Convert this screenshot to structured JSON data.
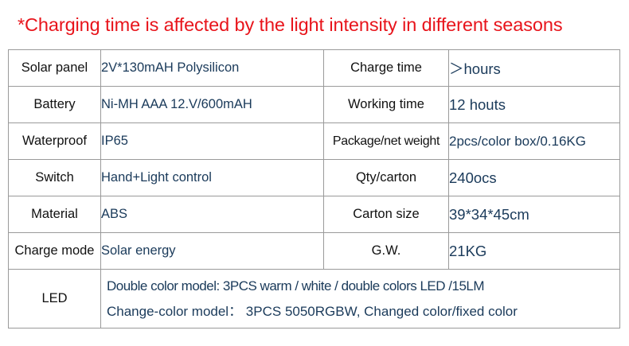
{
  "headline": "*Charging time is affected by the light intensity in different seasons",
  "rows": [
    {
      "label_left": "Solar panel",
      "value_left": "2V*130mAH Polysilicon",
      "label_right": "Charge time",
      "value_right": "＞hours"
    },
    {
      "label_left": "Battery",
      "value_left": "Ni-MH AAA  12.V/600mAH",
      "label_right": "Working time",
      "value_right": "12 houts"
    },
    {
      "label_left": "Waterproof",
      "value_left": "IP65",
      "label_right": "Package/net weight",
      "value_right": "2pcs/color box/0.16KG"
    },
    {
      "label_left": "Switch",
      "value_left": "Hand+Light control",
      "label_right": "Qty/carton",
      "value_right": "240ocs"
    },
    {
      "label_left": "Material",
      "value_left": "ABS",
      "label_right": "Carton size",
      "value_right": "39*34*45cm"
    },
    {
      "label_left": "Charge mode",
      "value_left": "Solar energy",
      "label_right": "G.W.",
      "value_right": "21KG"
    }
  ],
  "led": {
    "label": "LED",
    "line1": "Double color model: 3PCS warm / white /  double colors LED /15LM",
    "line2": "Change-color model： 3PCS 5050RGBW, Changed color/fixed color"
  },
  "colors": {
    "headline": "#e8141b",
    "value_text": "#1a3a5a",
    "border": "#9a9a9a"
  }
}
